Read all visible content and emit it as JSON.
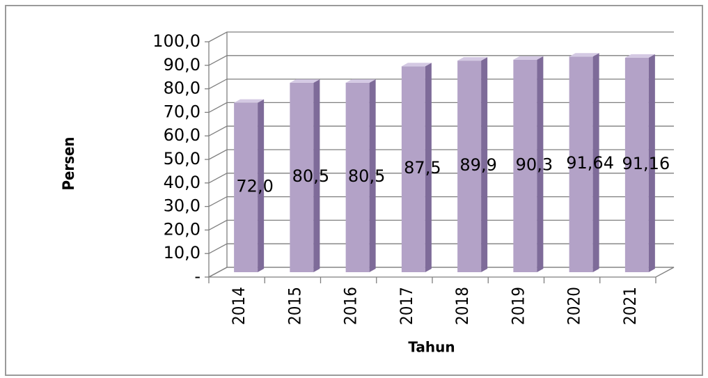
{
  "chart_data": {
    "type": "bar3d",
    "categories": [
      "2014",
      "2015",
      "2016",
      "2017",
      "2018",
      "2019",
      "2020",
      "2021"
    ],
    "values": [
      72.0,
      80.5,
      80.5,
      87.5,
      89.9,
      90.3,
      91.64,
      91.16
    ],
    "value_labels": [
      "72,0",
      "80,5",
      "80,5",
      "87,5",
      "89,9",
      "90,3",
      "91,64",
      "91,16"
    ],
    "color": "#b3a2c7",
    "ylabel": "Persen",
    "xlabel": "Tahun",
    "ylim": [
      0,
      100
    ],
    "yticks": [
      {
        "value": 0,
        "label": "-"
      },
      {
        "value": 10,
        "label": "10,0"
      },
      {
        "value": 20,
        "label": "20,0"
      },
      {
        "value": 30,
        "label": "30,0"
      },
      {
        "value": 40,
        "label": "40,0"
      },
      {
        "value": 50,
        "label": "50,0"
      },
      {
        "value": 60,
        "label": "60,0"
      },
      {
        "value": 70,
        "label": "70,0"
      },
      {
        "value": 80,
        "label": "80,0"
      },
      {
        "value": 90,
        "label": "90,0"
      },
      {
        "value": 100,
        "label": "100,0"
      }
    ],
    "grid": true
  }
}
